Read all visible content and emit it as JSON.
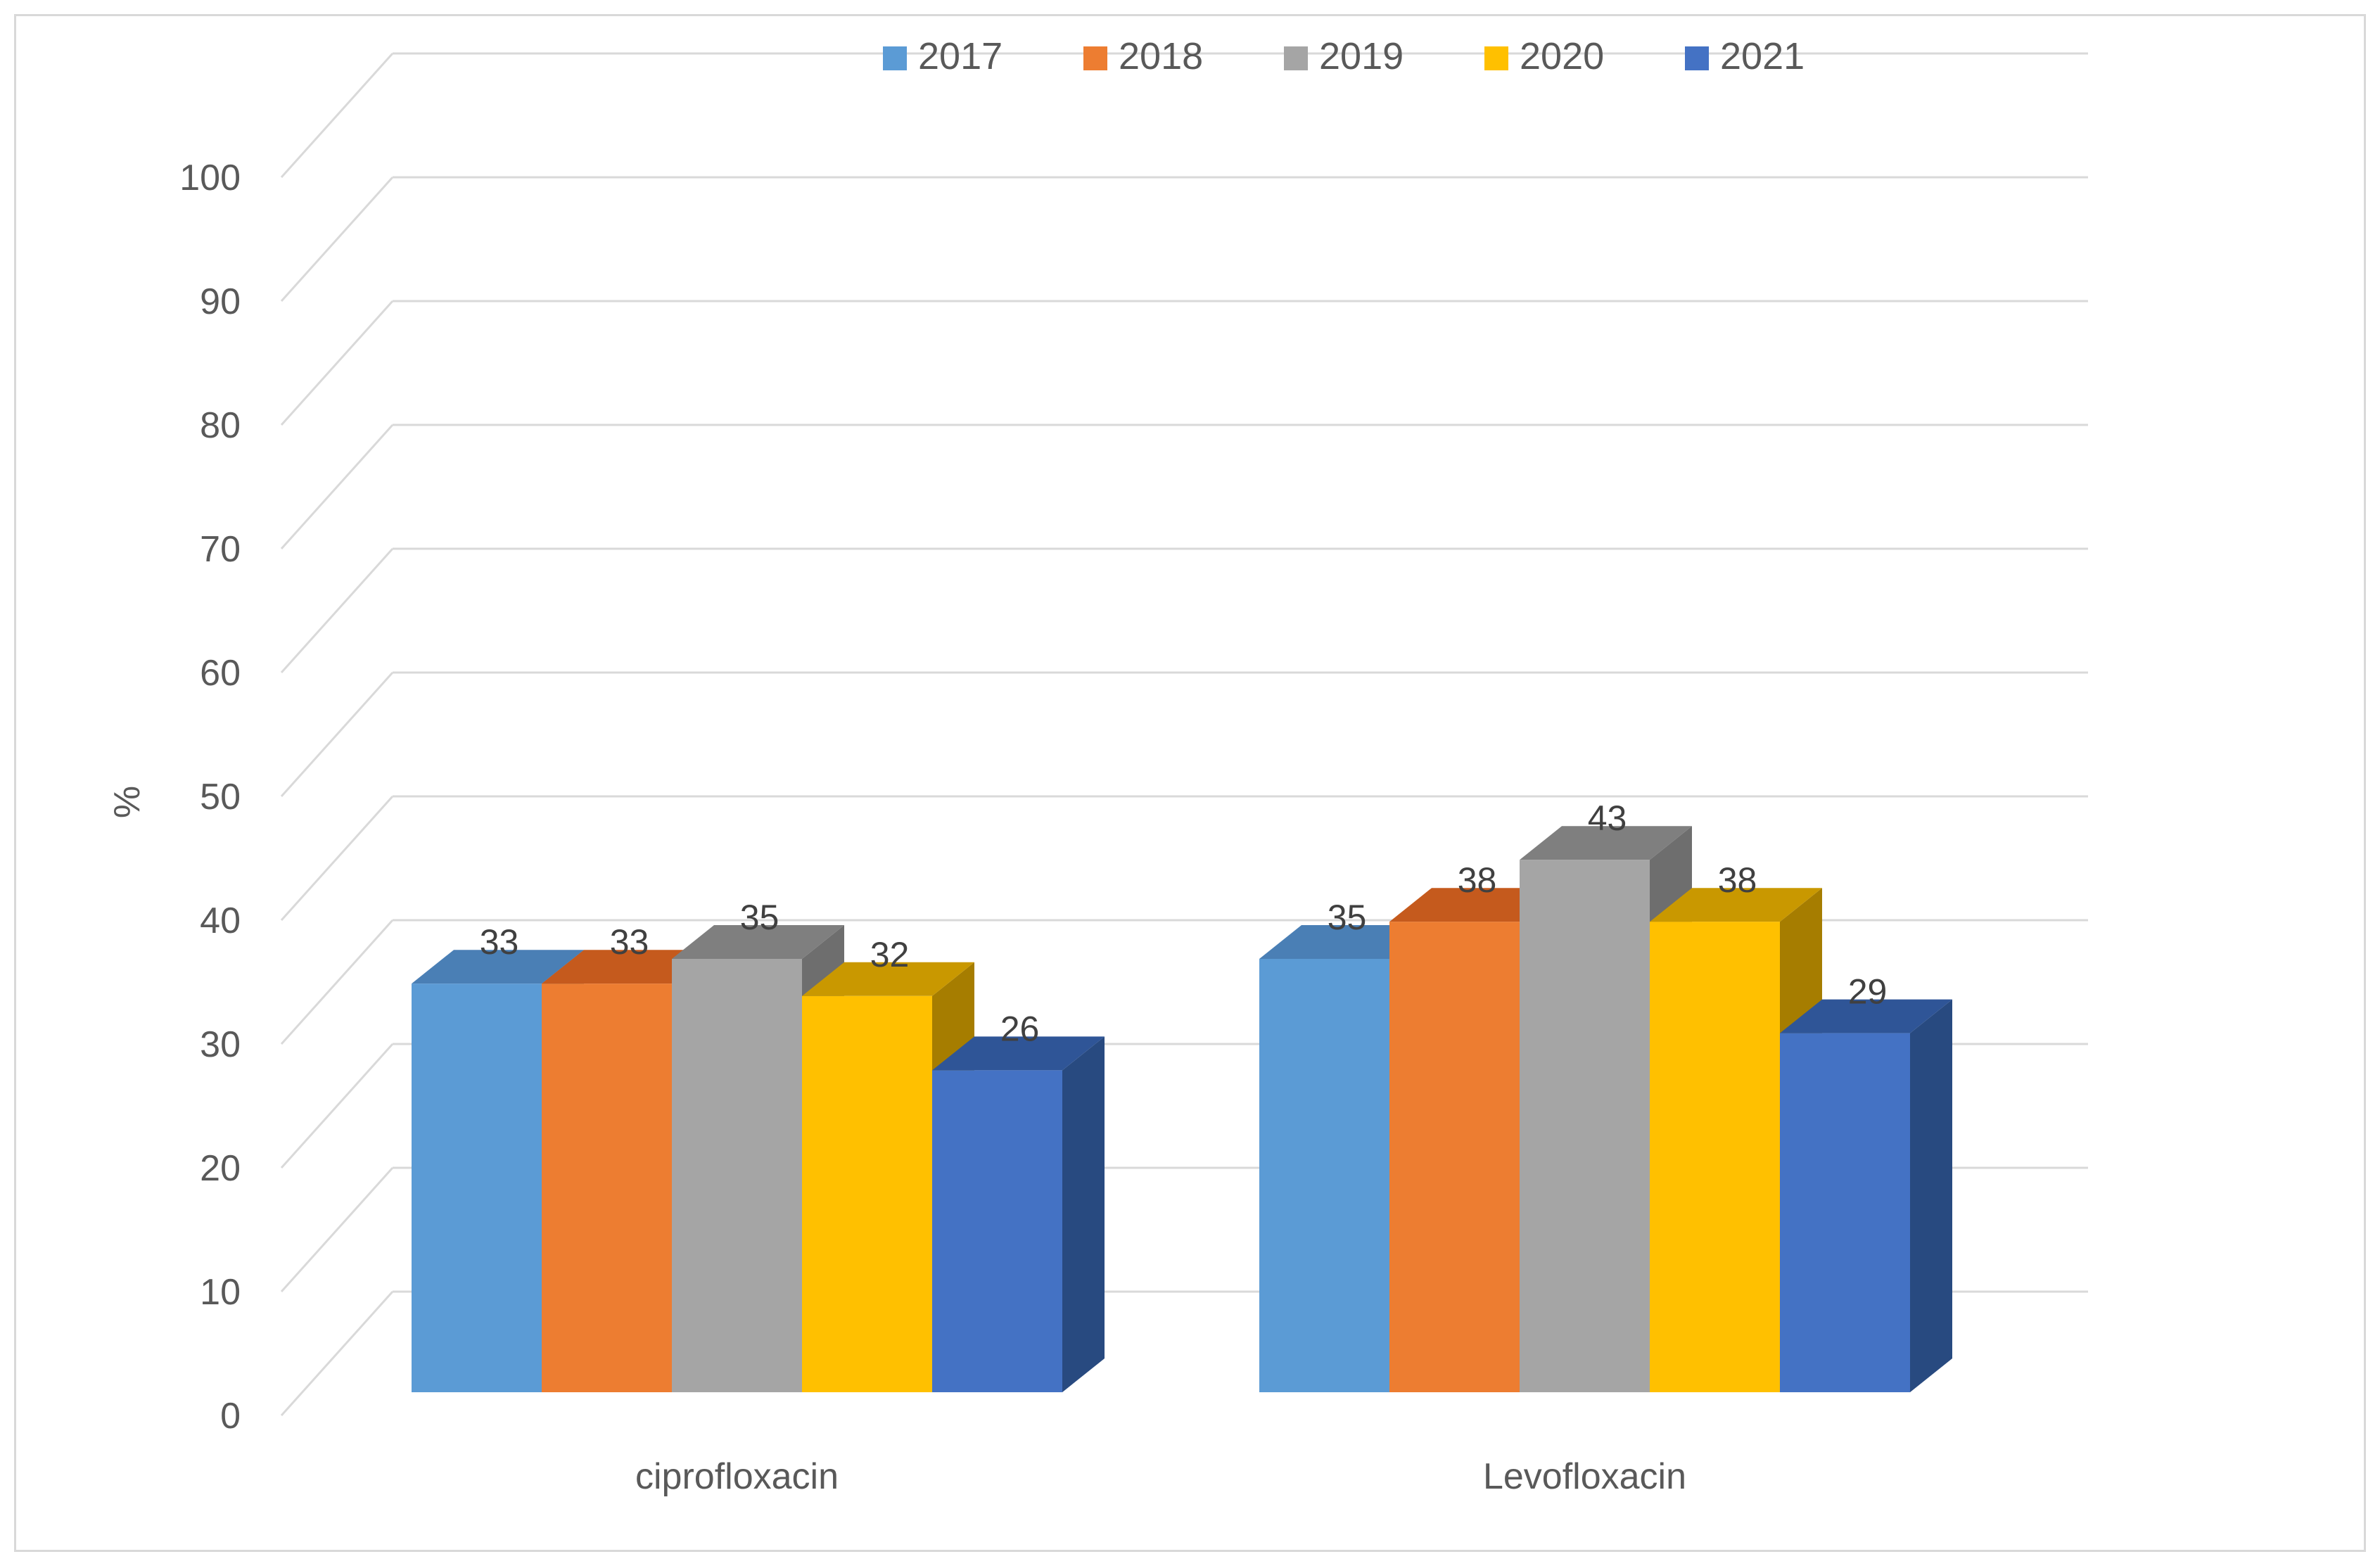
{
  "chart_data": {
    "type": "bar",
    "title": "",
    "xlabel": "",
    "ylabel": "%",
    "ylim": [
      0,
      100
    ],
    "yticks": [
      "0",
      "10",
      "20",
      "30",
      "40",
      "50",
      "60",
      "70",
      "80",
      "90",
      "100"
    ],
    "categories": [
      "ciprofloxacin",
      "Levofloxacin"
    ],
    "series": [
      {
        "name": "2017",
        "values": [
          33,
          35
        ],
        "color": "#5b9bd5",
        "top_color": "#4a7fb5",
        "side_color": "#3e6b99"
      },
      {
        "name": "2018",
        "values": [
          33,
          38
        ],
        "color": "#ed7d31",
        "top_color": "#c55a1d",
        "side_color": "#a84d18"
      },
      {
        "name": "2019",
        "values": [
          35,
          43
        ],
        "color": "#a5a5a5",
        "top_color": "#7f7f7f",
        "side_color": "#6e6e6e"
      },
      {
        "name": "2020",
        "values": [
          32,
          38
        ],
        "color": "#ffc000",
        "top_color": "#c99800",
        "side_color": "#a67d00"
      },
      {
        "name": "2021",
        "values": [
          26,
          29
        ],
        "color": "#4472c4",
        "top_color": "#2f5597",
        "side_color": "#284a80"
      }
    ],
    "legend_position": "top",
    "grid": true,
    "style": "3d-clustered-column"
  }
}
